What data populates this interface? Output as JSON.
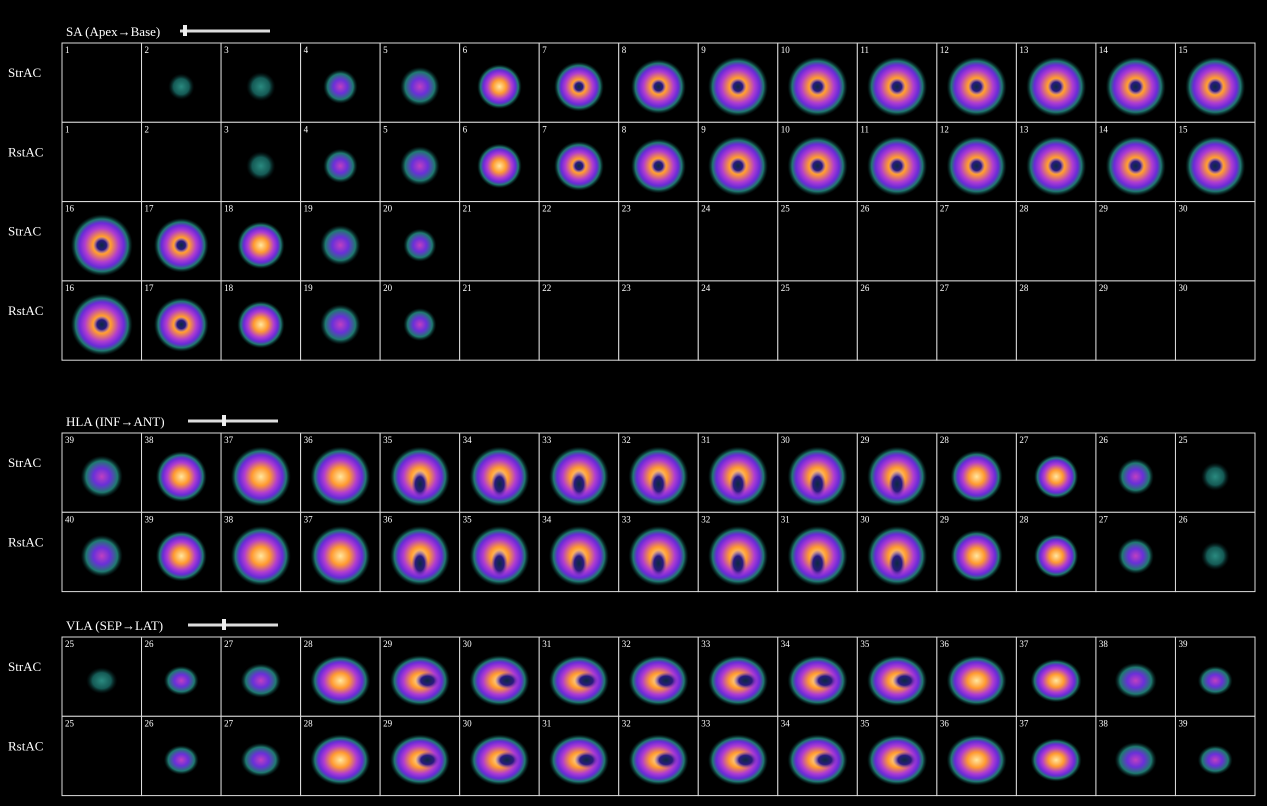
{
  "sections": [
    {
      "title": "SA (Apex→Base)",
      "rows": [
        {
          "label": "StrAC",
          "cells": [
            1,
            2,
            3,
            4,
            5,
            6,
            7,
            8,
            9,
            10,
            11,
            12,
            13,
            14,
            15
          ]
        },
        {
          "label": "RstAC",
          "cells": [
            1,
            2,
            3,
            4,
            5,
            6,
            7,
            8,
            9,
            10,
            11,
            12,
            13,
            14,
            15
          ]
        },
        {
          "label": "StrAC",
          "cells": [
            16,
            17,
            18,
            19,
            20,
            21,
            22,
            23,
            24,
            25,
            26,
            27,
            28,
            29,
            30
          ]
        },
        {
          "label": "RstAC",
          "cells": [
            16,
            17,
            18,
            19,
            20,
            21,
            22,
            23,
            24,
            25,
            26,
            27,
            28,
            29,
            30
          ]
        }
      ]
    },
    {
      "title": "HLA (INF→ANT)",
      "rows": [
        {
          "label": "StrAC",
          "cells": [
            39,
            38,
            37,
            36,
            35,
            34,
            33,
            32,
            31,
            30,
            29,
            28,
            27,
            26,
            25
          ]
        },
        {
          "label": "RstAC",
          "cells": [
            40,
            39,
            38,
            37,
            36,
            35,
            34,
            33,
            32,
            31,
            30,
            29,
            28,
            27,
            26
          ]
        }
      ]
    },
    {
      "title": "VLA (SEP→LAT)",
      "rows": [
        {
          "label": "StrAC",
          "cells": [
            25,
            26,
            27,
            28,
            29,
            30,
            31,
            32,
            33,
            34,
            35,
            36,
            37,
            38,
            39
          ]
        },
        {
          "label": "RstAC",
          "cells": [
            25,
            26,
            27,
            28,
            29,
            30,
            31,
            32,
            33,
            34,
            35,
            36,
            37,
            38,
            39
          ]
        }
      ]
    }
  ]
}
